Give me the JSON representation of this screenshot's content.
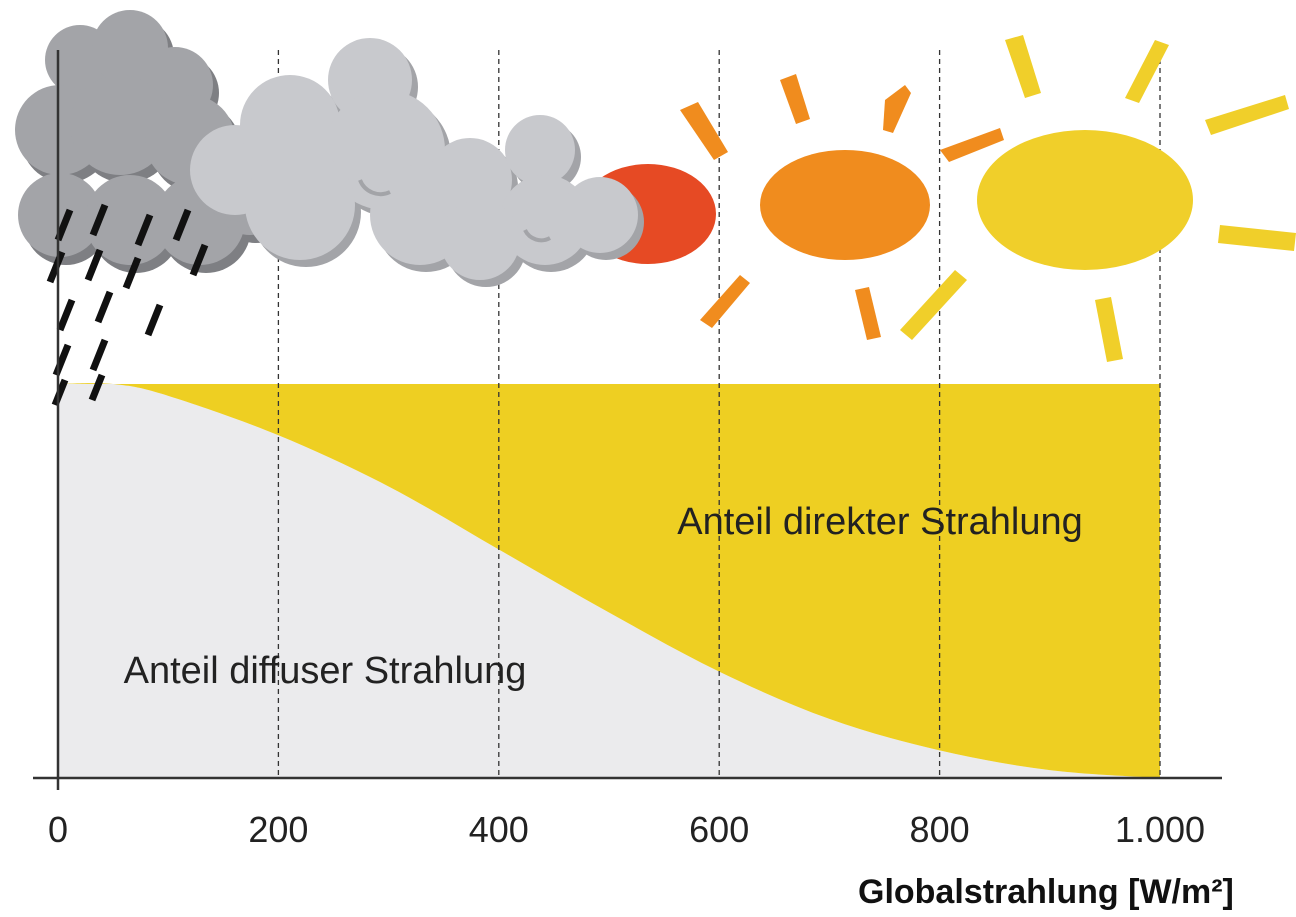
{
  "chart_data": {
    "type": "area",
    "xlabel": "Globalstrahlung [W/m²]",
    "ylabel": "",
    "xlim": [
      0,
      1000
    ],
    "ylim": [
      0,
      1
    ],
    "grid": "vertical-dashed",
    "categories": [
      "0",
      "200",
      "400",
      "600",
      "800",
      "1.000"
    ],
    "x": [
      0,
      50,
      100,
      200,
      300,
      400,
      500,
      600,
      700,
      800,
      900,
      1000
    ],
    "series": [
      {
        "name": "Anteil diffuser Strahlung",
        "color": "#ebebed",
        "values": [
          1.0,
          1.0,
          0.97,
          0.87,
          0.74,
          0.58,
          0.42,
          0.27,
          0.15,
          0.07,
          0.02,
          0.0
        ]
      },
      {
        "name": "Anteil direkter Strahlung",
        "color": "#eecf22",
        "values": [
          0.0,
          0.0,
          0.03,
          0.13,
          0.26,
          0.42,
          0.58,
          0.73,
          0.85,
          0.93,
          0.98,
          1.0
        ]
      }
    ],
    "illustrations": [
      "rain-cloud-icon",
      "cloud-icon",
      "partly-covered-sun-icon",
      "orange-sun-icon",
      "yellow-sun-icon"
    ],
    "colors": {
      "diffuse": "#ebebed",
      "direct": "#eecf22",
      "sun_red": "#e64a24",
      "sun_orange": "#f08c1e",
      "sun_yellow": "#f0cf2a",
      "cloud_dark": "#a3a4a8",
      "cloud_light": "#c8c9cd"
    }
  }
}
